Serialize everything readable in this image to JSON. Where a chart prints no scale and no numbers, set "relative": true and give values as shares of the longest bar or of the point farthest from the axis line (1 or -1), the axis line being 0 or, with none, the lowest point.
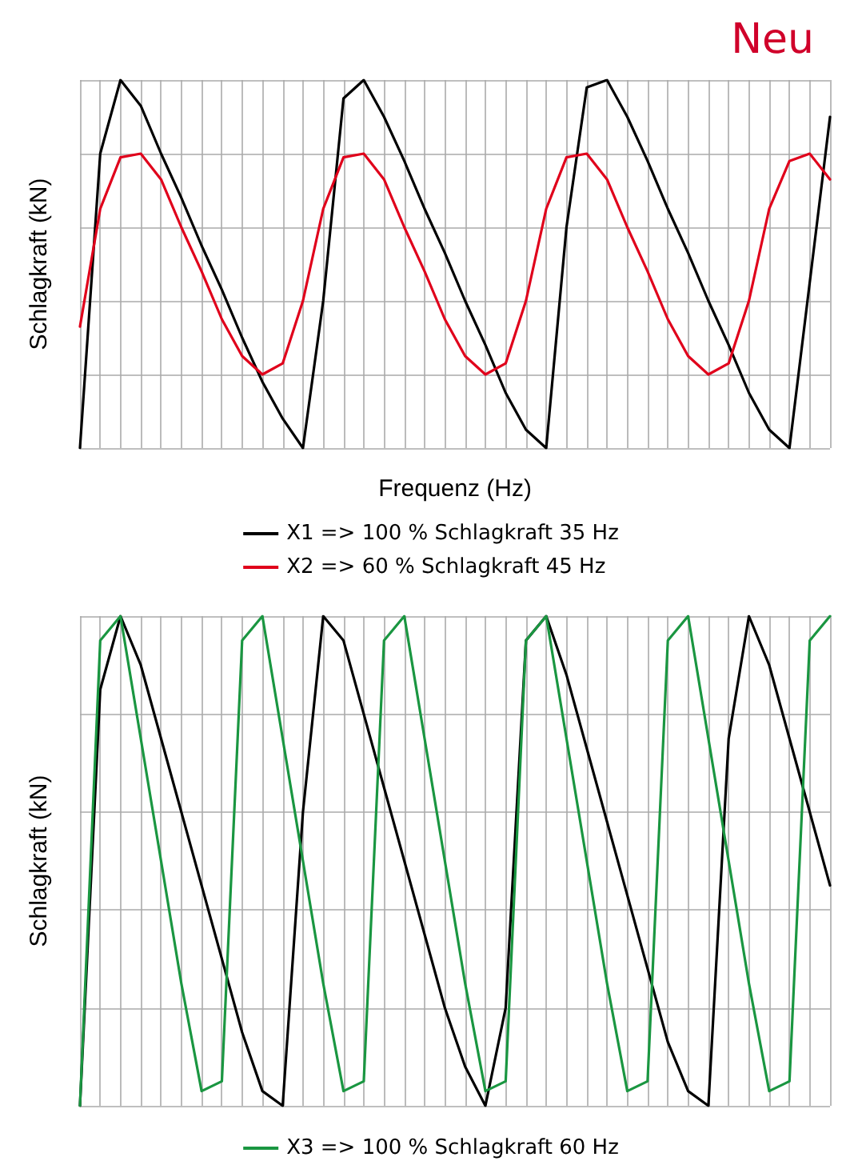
{
  "chart_data": [
    {
      "type": "line",
      "relative": true,
      "xlabel": "Frequenz (Hz)",
      "ylabel": "Schlagkraft (kN)",
      "annotations": [
        "Neu"
      ],
      "grid": true,
      "legend": "bottom",
      "marker": "none",
      "line_style": "solid",
      "categories": [
        null,
        null,
        null,
        null,
        null,
        null,
        null,
        null,
        null,
        null,
        null,
        null,
        null,
        null,
        null,
        null,
        null,
        null,
        null,
        null,
        null,
        null,
        null,
        null,
        null,
        null,
        null,
        null,
        null,
        null,
        null,
        null,
        null,
        null,
        null,
        null,
        null,
        null
      ],
      "series": [
        {
          "name": "X1 => 100 % Schlagkraft 35 Hz",
          "color": "#000000",
          "values": [
            0,
            0.8,
            1,
            0.93,
            0.8,
            0.68,
            0.55,
            0.43,
            0.3,
            0.18,
            0.08,
            0,
            0.4,
            0.95,
            1,
            0.9,
            0.78,
            0.65,
            0.53,
            0.4,
            0.28,
            0.15,
            0.05,
            0,
            0.6,
            0.98,
            1,
            0.9,
            0.78,
            0.65,
            0.53,
            0.4,
            0.28,
            0.15,
            0.05,
            0,
            0.45,
            0.9
          ]
        },
        {
          "name": "X2 => 60 % Schlagkraft 45 Hz",
          "color": "#e0001b",
          "values": [
            0.33,
            0.65,
            0.79,
            0.8,
            0.73,
            0.6,
            0.48,
            0.35,
            0.25,
            0.2,
            0.23,
            0.4,
            0.65,
            0.79,
            0.8,
            0.73,
            0.6,
            0.48,
            0.35,
            0.25,
            0.2,
            0.23,
            0.4,
            0.65,
            0.79,
            0.8,
            0.73,
            0.6,
            0.48,
            0.35,
            0.25,
            0.2,
            0.23,
            0.4,
            0.65,
            0.78,
            0.8,
            0.73
          ]
        }
      ]
    },
    {
      "type": "line",
      "relative": true,
      "ylabel": "Schlagkraft (kN)",
      "grid": true,
      "legend": "bottom",
      "marker": "none",
      "line_style": "solid",
      "categories": [
        null,
        null,
        null,
        null,
        null,
        null,
        null,
        null,
        null,
        null,
        null,
        null,
        null,
        null,
        null,
        null,
        null,
        null,
        null,
        null,
        null,
        null,
        null,
        null,
        null,
        null,
        null,
        null,
        null,
        null,
        null,
        null,
        null,
        null,
        null,
        null,
        null,
        null
      ],
      "series": [
        {
          "color": "#000000",
          "values": [
            0,
            0.85,
            1,
            0.9,
            0.75,
            0.6,
            0.45,
            0.3,
            0.15,
            0.03,
            0,
            0.6,
            1,
            0.95,
            0.8,
            0.65,
            0.5,
            0.35,
            0.2,
            0.08,
            0,
            0.2,
            0.95,
            1,
            0.88,
            0.73,
            0.58,
            0.43,
            0.28,
            0.13,
            0.03,
            0,
            0.75,
            1,
            0.9,
            0.75,
            0.6,
            0.45
          ]
        },
        {
          "name": "X3 => 100 % Schlagkraft 60 Hz",
          "color": "#1a9641",
          "values": [
            0,
            0.95,
            1,
            0.75,
            0.5,
            0.25,
            0.03,
            0.05,
            0.95,
            1,
            0.75,
            0.5,
            0.25,
            0.03,
            0.05,
            0.95,
            1,
            0.75,
            0.5,
            0.25,
            0.03,
            0.05,
            0.95,
            1,
            0.75,
            0.5,
            0.25,
            0.03,
            0.05,
            0.95,
            1,
            0.75,
            0.5,
            0.25,
            0.03,
            0.05,
            0.95,
            1
          ]
        }
      ]
    }
  ]
}
